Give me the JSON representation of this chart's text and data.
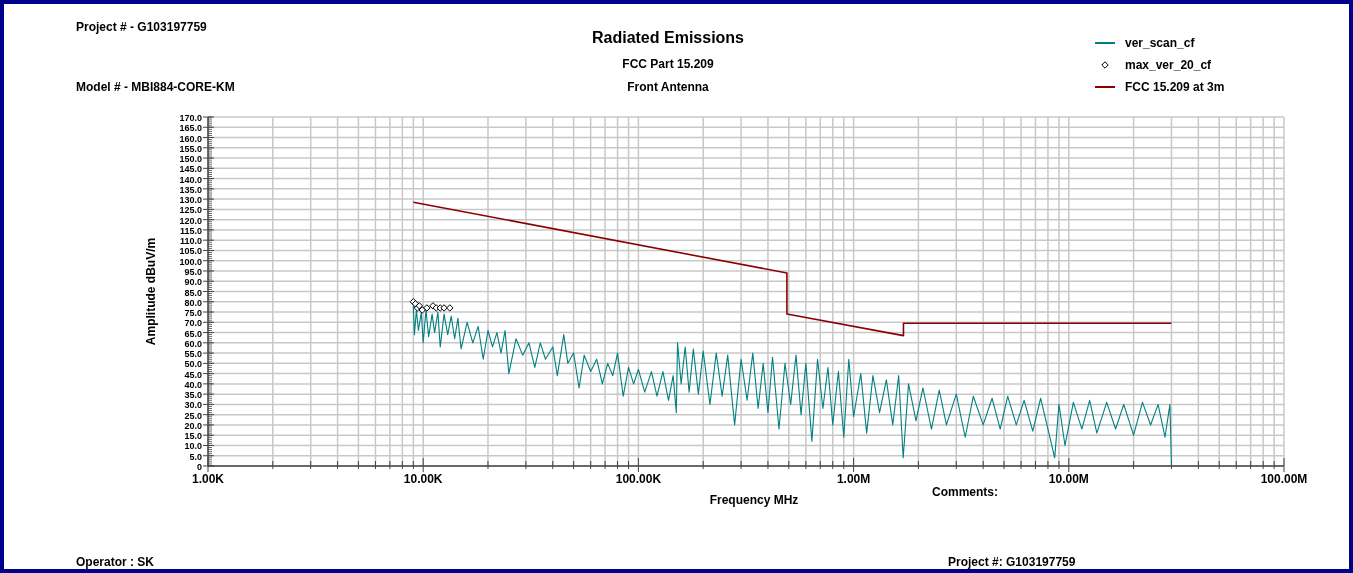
{
  "chart_data": {
    "type": "line",
    "title": "Radiated Emissions",
    "subtitle": "FCC Part 15.209",
    "xlabel": "Frequency MHz",
    "ylabel": "Amplitude dBuV/m",
    "annotations": [
      "Project # - G103197759",
      "Model # - MBI884-CORE-KM",
      "Front Antenna",
      "Comments:",
      "Operator : SK",
      "Project #: G103197759"
    ],
    "log": "x",
    "grid": true,
    "legend": "top right",
    "xlim": [
      1000,
      100000000
    ],
    "xticks": [
      {
        "value": 1000,
        "label": "1.00K"
      },
      {
        "value": 2000,
        "label": null
      },
      {
        "value": 3000,
        "label": null
      },
      {
        "value": 4000,
        "label": null
      },
      {
        "value": 5000,
        "label": null
      },
      {
        "value": 6000,
        "label": null
      },
      {
        "value": 7000,
        "label": null
      },
      {
        "value": 8000,
        "label": null
      },
      {
        "value": 9000,
        "label": null
      },
      {
        "value": 10000,
        "label": "10.00K"
      },
      {
        "value": 20000,
        "label": null
      },
      {
        "value": 30000,
        "label": null
      },
      {
        "value": 40000,
        "label": null
      },
      {
        "value": 50000,
        "label": null
      },
      {
        "value": 60000,
        "label": null
      },
      {
        "value": 70000,
        "label": null
      },
      {
        "value": 80000,
        "label": null
      },
      {
        "value": 90000,
        "label": null
      },
      {
        "value": 100000,
        "label": "100.00K"
      },
      {
        "value": 200000,
        "label": null
      },
      {
        "value": 300000,
        "label": null
      },
      {
        "value": 400000,
        "label": null
      },
      {
        "value": 500000,
        "label": null
      },
      {
        "value": 600000,
        "label": null
      },
      {
        "value": 700000,
        "label": null
      },
      {
        "value": 800000,
        "label": null
      },
      {
        "value": 900000,
        "label": null
      },
      {
        "value": 1000000,
        "label": "1.00M"
      },
      {
        "value": 2000000,
        "label": null
      },
      {
        "value": 3000000,
        "label": null
      },
      {
        "value": 4000000,
        "label": null
      },
      {
        "value": 5000000,
        "label": null
      },
      {
        "value": 6000000,
        "label": null
      },
      {
        "value": 7000000,
        "label": null
      },
      {
        "value": 8000000,
        "label": null
      },
      {
        "value": 9000000,
        "label": null
      },
      {
        "value": 10000000,
        "label": "10.00M"
      },
      {
        "value": 20000000,
        "label": null
      },
      {
        "value": 30000000,
        "label": null
      },
      {
        "value": 40000000,
        "label": null
      },
      {
        "value": 50000000,
        "label": null
      },
      {
        "value": 60000000,
        "label": null
      },
      {
        "value": 70000000,
        "label": null
      },
      {
        "value": 80000000,
        "label": null
      },
      {
        "value": 90000000,
        "label": null
      },
      {
        "value": 100000000,
        "label": "100.00M"
      }
    ],
    "ylim": [
      0,
      170
    ],
    "yticks": [
      0,
      {
        "value": 5,
        "label": "5.0"
      },
      {
        "value": 10,
        "label": "10.0"
      },
      {
        "value": 15,
        "label": "15.0"
      },
      {
        "value": 20,
        "label": "20.0"
      },
      {
        "value": 25,
        "label": "25.0"
      },
      {
        "value": 30,
        "label": "30.0"
      },
      {
        "value": 35,
        "label": "35.0"
      },
      {
        "value": 40,
        "label": "40.0"
      },
      {
        "value": 45,
        "label": "45.0"
      },
      {
        "value": 50,
        "label": "50.0"
      },
      {
        "value": 55,
        "label": "55.0"
      },
      {
        "value": 60,
        "label": "60.0"
      },
      {
        "value": 65,
        "label": "65.0"
      },
      {
        "value": 70,
        "label": "70.0"
      },
      {
        "value": 75,
        "label": "75.0"
      },
      {
        "value": 80,
        "label": "80.0"
      },
      {
        "value": 85,
        "label": "85.0"
      },
      {
        "value": 90,
        "label": "90.0"
      },
      {
        "value": 95,
        "label": "95.0"
      },
      {
        "value": 100,
        "label": "100.0"
      },
      {
        "value": 105,
        "label": "105.0"
      },
      {
        "value": 110,
        "label": "110.0"
      },
      {
        "value": 115,
        "label": "115.0"
      },
      {
        "value": 120,
        "label": "120.0"
      },
      {
        "value": 125,
        "label": "125.0"
      },
      {
        "value": 130,
        "label": "130.0"
      },
      {
        "value": 135,
        "label": "135.0"
      },
      {
        "value": 140,
        "label": "140.0"
      },
      {
        "value": 145,
        "label": "145.0"
      },
      {
        "value": 150,
        "label": "150.0"
      },
      {
        "value": 155,
        "label": "155.0"
      },
      {
        "value": 160,
        "label": "160.0"
      },
      {
        "value": 165,
        "label": "165.0"
      },
      {
        "value": 170,
        "label": "170.0"
      }
    ],
    "series": [
      {
        "name": "ver_scan_cf",
        "color": "#008080",
        "x": [
          9000,
          9100,
          9300,
          9500,
          9800,
          10000,
          10300,
          10600,
          11000,
          11300,
          11700,
          12000,
          12500,
          13000,
          13500,
          14000,
          14500,
          15000,
          16000,
          17000,
          18000,
          19000,
          20000,
          21000,
          22000,
          23000,
          24000,
          25000,
          27000,
          29000,
          31000,
          33000,
          35000,
          37000,
          40000,
          42000,
          45000,
          47000,
          50000,
          53000,
          56000,
          60000,
          64000,
          68000,
          72000,
          76000,
          80000,
          85000,
          90000,
          95000,
          100000,
          107000,
          115000,
          122000,
          130000,
          138000,
          145000,
          150000,
          152000,
          158000,
          165000,
          172000,
          180000,
          190000,
          200000,
          215000,
          230000,
          245000,
          260000,
          280000,
          300000,
          320000,
          340000,
          360000,
          380000,
          400000,
          420000,
          450000,
          480000,
          510000,
          540000,
          570000,
          600000,
          640000,
          680000,
          720000,
          760000,
          800000,
          850000,
          900000,
          950000,
          1000000,
          1080000,
          1150000,
          1230000,
          1320000,
          1420000,
          1520000,
          1620000,
          1700000,
          1800000,
          1950000,
          2100000,
          2300000,
          2500000,
          2700000,
          3000000,
          3300000,
          3600000,
          4000000,
          4400000,
          4800000,
          5200000,
          5700000,
          6200000,
          6800000,
          7400000,
          8000000,
          8600000,
          9000000,
          9600000,
          10500000,
          11500000,
          12500000,
          13500000,
          15000000,
          16500000,
          18000000,
          20000000,
          22000000,
          24000000,
          26000000,
          28000000,
          29500000,
          30000000
        ],
        "values": [
          78,
          64,
          76,
          66,
          75,
          60,
          76,
          63,
          74,
          65,
          75,
          58,
          74,
          64,
          73,
          62,
          72,
          57,
          70,
          60,
          68,
          52,
          66,
          58,
          65,
          55,
          66,
          45,
          62,
          54,
          60,
          48,
          60,
          52,
          58,
          44,
          64,
          50,
          55,
          38,
          54,
          46,
          52,
          40,
          50,
          44,
          55,
          34,
          48,
          40,
          47,
          36,
          46,
          34,
          46,
          32,
          44,
          26,
          60,
          40,
          58,
          36,
          57,
          35,
          56,
          30,
          55,
          34,
          54,
          20,
          52,
          32,
          55,
          28,
          50,
          26,
          53,
          18,
          50,
          30,
          54,
          25,
          50,
          12,
          52,
          28,
          48,
          20,
          46,
          14,
          52,
          24,
          45,
          16,
          44,
          26,
          42,
          20,
          44,
          4,
          40,
          22,
          38,
          18,
          37,
          20,
          35,
          14,
          34,
          20,
          33,
          18,
          34,
          20,
          32,
          17,
          33,
          18,
          4,
          30,
          10,
          31,
          18,
          32,
          16,
          31,
          18,
          30,
          15,
          31,
          20,
          30,
          14,
          30,
          0
        ]
      },
      {
        "name": "max_ver_20_cf",
        "type": "scatter",
        "color": "#000000",
        "marker": "diamond",
        "x": [
          9000,
          9200,
          9400,
          9600,
          9900,
          10400,
          11100,
          11500,
          12000,
          12500,
          13300
        ],
        "values": [
          80,
          79,
          77,
          78,
          76,
          77,
          78,
          77,
          77,
          77,
          77
        ]
      },
      {
        "name": "FCC 15.209 at 3m",
        "color": "#8b0000",
        "x": [
          9000,
          490000,
          490000,
          1705000,
          1705000,
          30000000
        ],
        "values": [
          128.5,
          94,
          74,
          63.5,
          69.5,
          69.5
        ]
      }
    ]
  }
}
